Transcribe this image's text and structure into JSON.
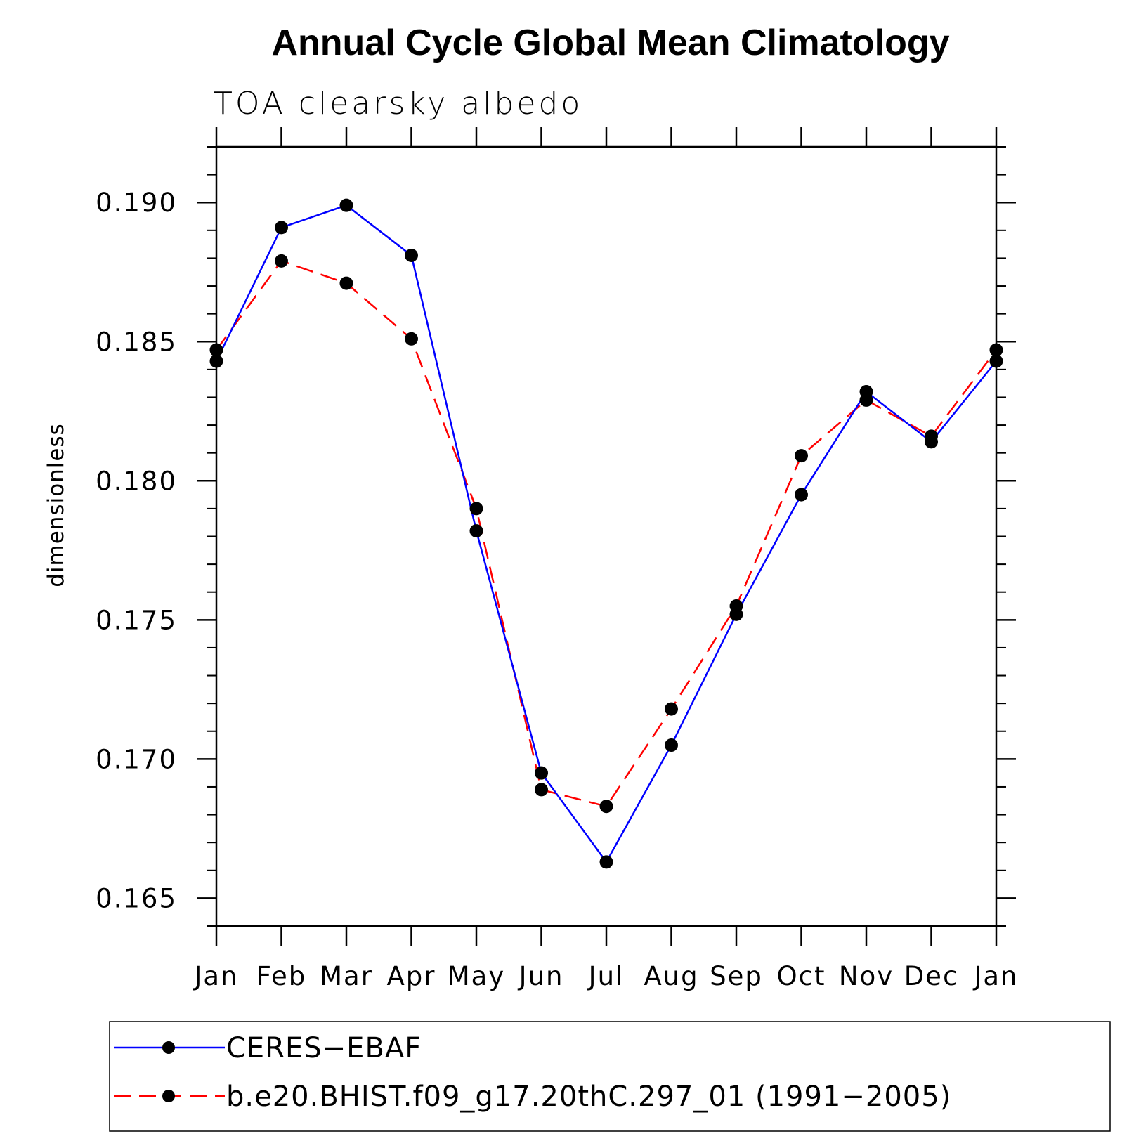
{
  "chart_data": {
    "type": "line",
    "title": "Annual Cycle Global Mean Climatology",
    "subtitle": "TOA clearsky albedo",
    "xlabel": "",
    "ylabel": "dimensionless",
    "categories": [
      "Jan",
      "Feb",
      "Mar",
      "Apr",
      "May",
      "Jun",
      "Jul",
      "Aug",
      "Sep",
      "Oct",
      "Nov",
      "Dec",
      "Jan"
    ],
    "ylim": [
      0.164,
      0.192
    ],
    "yticks": [
      0.165,
      0.17,
      0.175,
      0.18,
      0.185,
      0.19
    ],
    "ytick_labels": [
      "0.165",
      "0.170",
      "0.175",
      "0.180",
      "0.185",
      "0.190"
    ],
    "grid": false,
    "legend_position": "bottom",
    "series": [
      {
        "name": "CERES−EBAF",
        "color": "#0000ff",
        "dash": "solid",
        "marker": "circle",
        "values": [
          0.1843,
          0.1891,
          0.1899,
          0.1881,
          0.1782,
          0.1695,
          0.1663,
          0.1705,
          0.1752,
          0.1795,
          0.1832,
          0.1814,
          0.1843
        ]
      },
      {
        "name": "b.e20.BHIST.f09_g17.20thC.297_01 (1991−2005)",
        "color": "#ff0000",
        "dash": "dashed",
        "marker": "circle",
        "values": [
          0.1847,
          0.1879,
          0.1871,
          0.1851,
          0.179,
          0.1689,
          0.1683,
          0.1718,
          0.1755,
          0.1809,
          0.1829,
          0.1816,
          0.1847
        ]
      }
    ]
  }
}
